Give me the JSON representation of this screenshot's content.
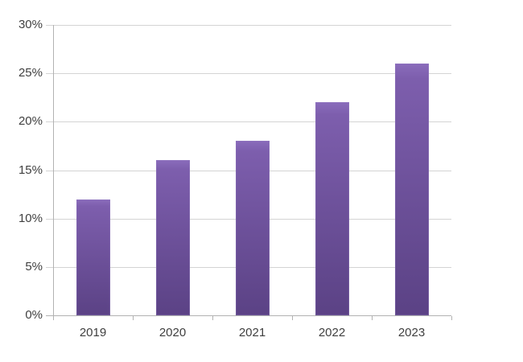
{
  "chart_data": {
    "type": "bar",
    "title": "",
    "xlabel": "",
    "ylabel": "",
    "categories": [
      "2019",
      "2020",
      "2021",
      "2022",
      "2023"
    ],
    "values": [
      12,
      16,
      18,
      22,
      26
    ],
    "ylim": [
      0,
      30
    ],
    "ytick_step": 5,
    "ytick_labels": [
      "0%",
      "5%",
      "10%",
      "15%",
      "20%",
      "25%",
      "30%"
    ],
    "grid": true,
    "legend": "none",
    "colors": {
      "bar_top": "#8a6cbb",
      "bar_upper": "#7d5ead",
      "bar_bottom": "#5b4285",
      "bar_edge": "#9a82c6",
      "gridline": "#d4d4d4",
      "axis": "#b2b2b2",
      "tick_label": "#3f3f3f",
      "background": "#ffffff"
    }
  }
}
